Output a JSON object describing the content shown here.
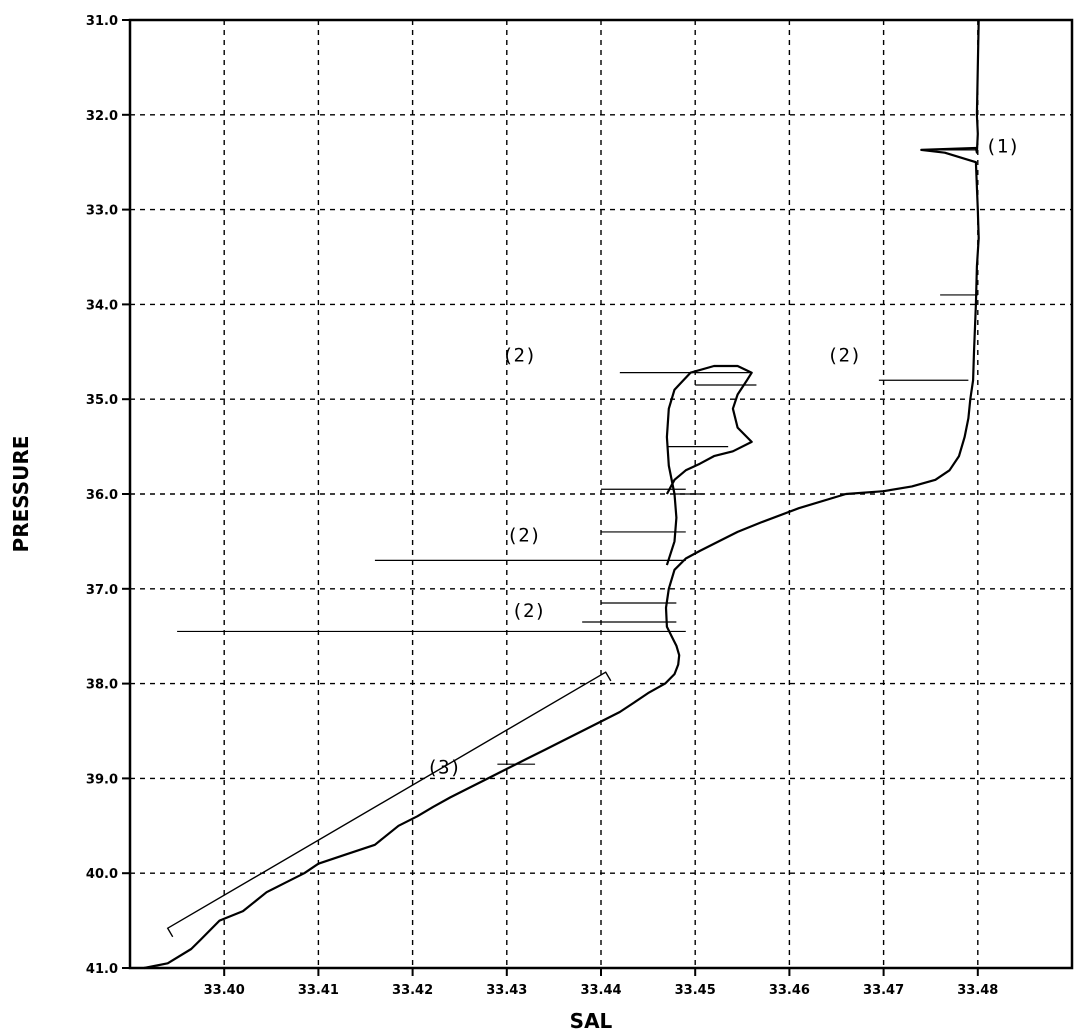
{
  "chart_data": {
    "type": "line",
    "title": "",
    "xlabel": "SAL",
    "ylabel": "PRESSURE",
    "xlim": [
      33.39,
      33.49
    ],
    "ylim": [
      41.0,
      31.0
    ],
    "y_inverted": true,
    "grid": true,
    "x_ticks": [
      "33.40",
      "33.41",
      "33.42",
      "33.43",
      "33.44",
      "33.45",
      "33.46",
      "33.47",
      "33.48"
    ],
    "y_ticks": [
      "31.0",
      "32.0",
      "33.0",
      "34.0",
      "35.0",
      "36.0",
      "37.0",
      "38.0",
      "39.0",
      "40.0",
      "41.0"
    ],
    "series": [
      {
        "x": [
          33.4801,
          33.48,
          33.4799,
          33.48,
          33.4799,
          33.4798,
          33.474,
          33.4765,
          33.4798,
          33.48,
          33.4801,
          33.4799,
          33.4798,
          33.4796,
          33.4795,
          33.4792,
          33.479,
          33.4786,
          33.478,
          33.477,
          33.4755,
          33.473,
          33.47,
          33.466,
          33.461,
          33.457,
          33.4545,
          33.4525,
          33.4505,
          33.449,
          33.4478,
          33.4472,
          33.4469,
          33.447,
          33.4475,
          33.448,
          33.4483,
          33.4482,
          33.4478,
          33.4468,
          33.445,
          33.4435,
          33.442,
          33.44,
          33.438,
          33.436,
          33.434,
          33.432,
          33.43,
          33.428,
          33.426,
          33.424,
          33.4222,
          33.4205,
          33.4185,
          33.416,
          33.413,
          33.41,
          33.4085,
          33.4065,
          33.4045,
          33.402,
          33.3995,
          33.3975,
          33.3965,
          33.394,
          33.3915
        ],
        "y": [
          31.0,
          31.5,
          32.0,
          32.2,
          32.4,
          32.35,
          32.37,
          32.4,
          32.5,
          33.0,
          33.3,
          33.6,
          34.0,
          34.5,
          34.8,
          35.0,
          35.2,
          35.4,
          35.6,
          35.75,
          35.85,
          35.92,
          35.97,
          36.0,
          36.15,
          36.3,
          36.4,
          36.5,
          36.6,
          36.68,
          36.8,
          37.0,
          37.2,
          37.4,
          37.5,
          37.6,
          37.7,
          37.8,
          37.9,
          38.0,
          38.1,
          38.2,
          38.3,
          38.4,
          38.5,
          38.6,
          38.7,
          38.8,
          38.9,
          39.0,
          39.1,
          39.2,
          39.3,
          39.4,
          39.5,
          39.7,
          39.8,
          39.9,
          40.0,
          40.1,
          40.2,
          40.4,
          40.5,
          40.7,
          40.8,
          40.95,
          41.0
        ]
      },
      {
        "x": [
          33.447,
          33.4478,
          33.448,
          33.4478,
          33.4472,
          33.447,
          33.4472,
          33.4478,
          33.4495,
          33.452,
          33.4545,
          33.456,
          33.4555,
          33.4545,
          33.454,
          33.4545,
          33.456,
          33.454,
          33.452,
          33.4505,
          33.449,
          33.4478,
          33.447
        ],
        "y": [
          36.75,
          36.5,
          36.25,
          36.0,
          35.7,
          35.4,
          35.1,
          34.9,
          34.72,
          34.65,
          34.65,
          34.72,
          34.8,
          34.95,
          35.1,
          35.3,
          35.45,
          35.55,
          35.6,
          35.68,
          35.75,
          35.85,
          36.0
        ]
      }
    ],
    "spikes": [
      {
        "y": 32.37,
        "x_from": 33.474,
        "x_to": 33.48
      },
      {
        "y": 33.9,
        "x_from": 33.476,
        "x_to": 33.48
      },
      {
        "y": 34.72,
        "x_from": 33.442,
        "x_to": 33.456
      },
      {
        "y": 34.85,
        "x_from": 33.45,
        "x_to": 33.4565
      },
      {
        "y": 34.8,
        "x_from": 33.4695,
        "x_to": 33.479
      },
      {
        "y": 35.5,
        "x_from": 33.447,
        "x_to": 33.4535
      },
      {
        "y": 35.95,
        "x_from": 33.44,
        "x_to": 33.449
      },
      {
        "y": 36.0,
        "x_from": 33.4478,
        "x_to": 33.451
      },
      {
        "y": 36.4,
        "x_from": 33.44,
        "x_to": 33.449
      },
      {
        "y": 36.7,
        "x_from": 33.416,
        "x_to": 33.449
      },
      {
        "y": 37.15,
        "x_from": 33.44,
        "x_to": 33.448
      },
      {
        "y": 37.35,
        "x_from": 33.438,
        "x_to": 33.448
      },
      {
        "y": 37.45,
        "x_from": 33.395,
        "x_to": 33.449
      },
      {
        "y": 38.85,
        "x_from": 33.429,
        "x_to": 33.433
      }
    ],
    "bracket": {
      "x1": 33.394,
      "y1": 40.58,
      "x2": 33.4405,
      "y2": 37.88
    },
    "annotations": [
      {
        "text": "(1)",
        "x": 33.4808,
        "y": 32.4
      },
      {
        "text": "(2)",
        "x": 33.4295,
        "y": 34.6
      },
      {
        "text": "(2)",
        "x": 33.464,
        "y": 34.6
      },
      {
        "text": "(2)",
        "x": 33.43,
        "y": 36.5
      },
      {
        "text": "(2)",
        "x": 33.4305,
        "y": 37.3
      },
      {
        "text": "(3)",
        "x": 33.4215,
        "y": 38.95
      }
    ]
  }
}
